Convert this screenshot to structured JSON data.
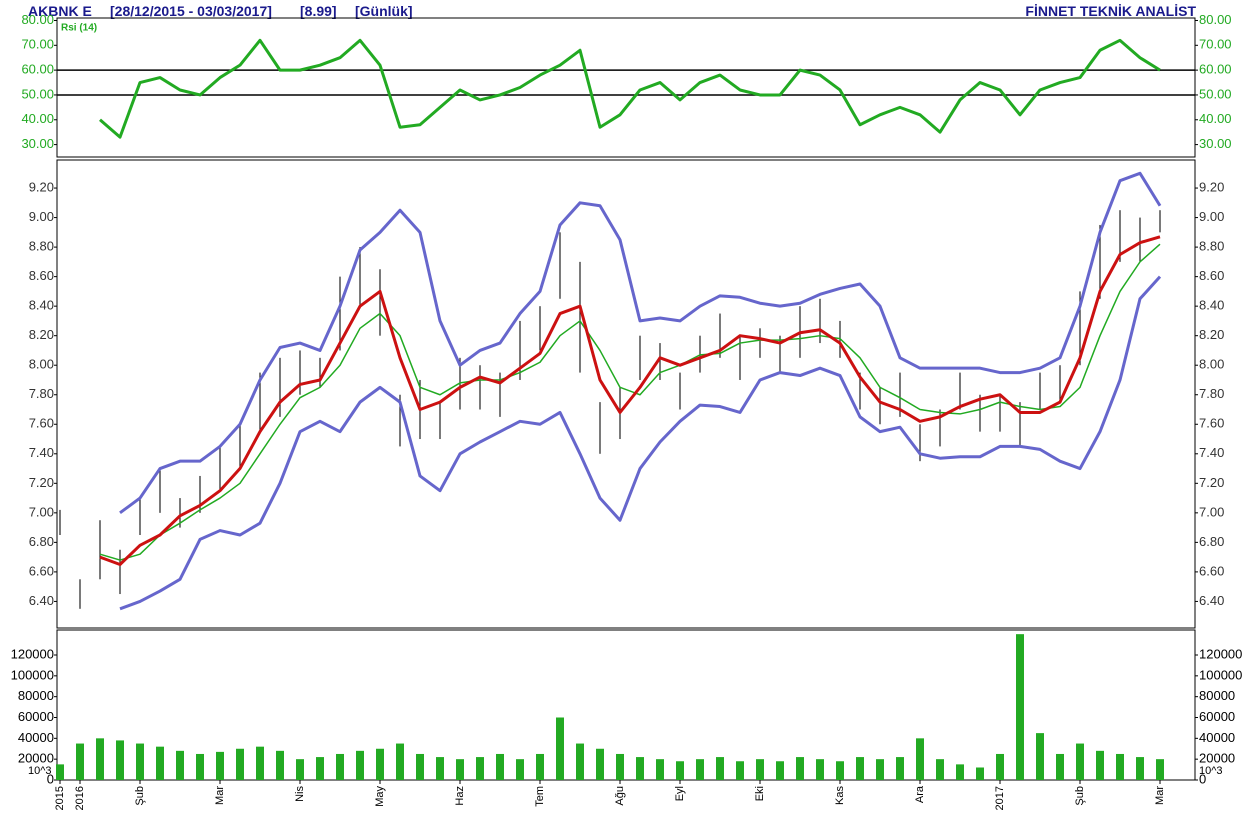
{
  "header": {
    "symbol": "AKBNK E",
    "range": "[28/12/2015 - 03/03/2017]",
    "last": "[8.99]",
    "period": "[Günlük]",
    "brand": "FİNNET TEKNİK ANALİST"
  },
  "chart_data": [
    {
      "type": "line",
      "title": "Rsi (14)",
      "color": "#22aa22",
      "ylim": [
        25,
        81
      ],
      "yticks": [
        {
          "value": 30,
          "label": "30.00"
        },
        {
          "value": 40,
          "label": "40.00"
        },
        {
          "value": 50,
          "label": "50.00"
        },
        {
          "value": 60,
          "label": "60.00"
        },
        {
          "value": 70,
          "label": "70.00"
        },
        {
          "value": 80,
          "label": "80.00"
        }
      ],
      "levels": [
        60,
        50
      ],
      "values": [
        null,
        null,
        40,
        33,
        55,
        57,
        52,
        50,
        57,
        62,
        72,
        60,
        60,
        62,
        65,
        72,
        62,
        37,
        38,
        45,
        52,
        48,
        50,
        53,
        58,
        62,
        68,
        37,
        42,
        52,
        55,
        48,
        55,
        58,
        52,
        50,
        50,
        60,
        58,
        52,
        38,
        42,
        45,
        42,
        35,
        48,
        55,
        52,
        42,
        52,
        55,
        57,
        68,
        72,
        65,
        60,
        null
      ]
    },
    {
      "type": "hilo",
      "ylim": [
        6.22,
        9.39
      ],
      "yticks": [
        {
          "value": 6.4,
          "label": "6.40"
        },
        {
          "value": 6.6,
          "label": "6.60"
        },
        {
          "value": 6.8,
          "label": "6.80"
        },
        {
          "value": 7.0,
          "label": "7.00"
        },
        {
          "value": 7.2,
          "label": "7.20"
        },
        {
          "value": 7.4,
          "label": "7.40"
        },
        {
          "value": 7.6,
          "label": "7.60"
        },
        {
          "value": 7.8,
          "label": "7.80"
        },
        {
          "value": 8.0,
          "label": "8.00"
        },
        {
          "value": 8.2,
          "label": "8.20"
        },
        {
          "value": 8.4,
          "label": "8.40"
        },
        {
          "value": 8.6,
          "label": "8.60"
        },
        {
          "value": 8.8,
          "label": "8.80"
        },
        {
          "value": 9.0,
          "label": "9.00"
        },
        {
          "value": 9.2,
          "label": "9.20"
        }
      ],
      "bar_color": "#222222",
      "high": [
        7.02,
        6.55,
        6.95,
        6.75,
        7.1,
        7.3,
        7.1,
        7.25,
        7.45,
        7.6,
        7.95,
        8.05,
        8.1,
        8.05,
        8.6,
        8.8,
        8.65,
        7.8,
        7.9,
        7.75,
        8.05,
        8.0,
        7.95,
        8.3,
        8.4,
        8.9,
        8.7,
        7.75,
        7.85,
        8.2,
        8.15,
        7.95,
        8.2,
        8.35,
        8.2,
        8.25,
        8.2,
        8.4,
        8.45,
        8.3,
        7.95,
        7.85,
        7.95,
        7.6,
        7.7,
        7.95,
        7.8,
        7.8,
        7.75,
        7.95,
        8.0,
        8.5,
        8.95,
        9.05,
        9.0,
        9.05,
        null
      ],
      "low": [
        6.85,
        6.35,
        6.55,
        6.45,
        6.85,
        7.0,
        6.9,
        7.0,
        7.15,
        7.3,
        7.55,
        7.65,
        7.8,
        7.85,
        8.1,
        8.4,
        8.2,
        7.45,
        7.5,
        7.5,
        7.7,
        7.7,
        7.65,
        7.9,
        8.1,
        8.45,
        7.95,
        7.4,
        7.5,
        7.9,
        7.9,
        7.7,
        7.95,
        8.05,
        7.9,
        8.05,
        7.95,
        8.05,
        8.15,
        8.05,
        7.7,
        7.6,
        7.65,
        7.35,
        7.45,
        7.7,
        7.55,
        7.55,
        7.45,
        7.7,
        7.75,
        8.0,
        8.45,
        8.7,
        8.7,
        8.9,
        null
      ],
      "lines": [
        {
          "color": "#6666cc",
          "width": 3,
          "values": [
            null,
            null,
            null,
            7.0,
            7.1,
            7.3,
            7.35,
            7.35,
            7.45,
            7.6,
            7.9,
            8.12,
            8.15,
            8.1,
            8.4,
            8.78,
            8.9,
            9.05,
            8.9,
            8.3,
            8.0,
            8.1,
            8.15,
            8.35,
            8.5,
            8.95,
            9.1,
            9.08,
            8.85,
            8.3,
            8.32,
            8.3,
            8.4,
            8.47,
            8.46,
            8.42,
            8.4,
            8.42,
            8.48,
            8.52,
            8.55,
            8.4,
            8.05,
            7.98,
            7.98,
            7.98,
            7.98,
            7.95,
            7.95,
            7.98,
            8.05,
            8.4,
            8.9,
            9.25,
            9.3,
            9.08,
            null
          ]
        },
        {
          "color": "#6666cc",
          "width": 3,
          "values": [
            null,
            null,
            null,
            6.35,
            6.4,
            6.47,
            6.55,
            6.82,
            6.88,
            6.85,
            6.93,
            7.2,
            7.55,
            7.62,
            7.55,
            7.75,
            7.85,
            7.75,
            7.25,
            7.15,
            7.4,
            7.48,
            7.55,
            7.62,
            7.6,
            7.68,
            7.4,
            7.1,
            6.95,
            7.3,
            7.48,
            7.62,
            7.73,
            7.72,
            7.68,
            7.9,
            7.95,
            7.93,
            7.98,
            7.93,
            7.65,
            7.55,
            7.58,
            7.4,
            7.37,
            7.38,
            7.38,
            7.45,
            7.45,
            7.43,
            7.35,
            7.3,
            7.55,
            7.9,
            8.45,
            8.6,
            null
          ]
        },
        {
          "color": "#22aa22",
          "width": 1.5,
          "values": [
            null,
            null,
            6.72,
            6.68,
            6.72,
            6.85,
            6.93,
            7.02,
            7.1,
            7.2,
            7.4,
            7.6,
            7.78,
            7.85,
            8.0,
            8.25,
            8.35,
            8.2,
            7.85,
            7.8,
            7.88,
            7.9,
            7.9,
            7.95,
            8.02,
            8.2,
            8.3,
            8.1,
            7.85,
            7.8,
            7.95,
            8.0,
            8.07,
            8.08,
            8.15,
            8.17,
            8.17,
            8.18,
            8.2,
            8.18,
            8.05,
            7.85,
            7.78,
            7.7,
            7.68,
            7.67,
            7.7,
            7.75,
            7.72,
            7.7,
            7.72,
            7.85,
            8.2,
            8.5,
            8.7,
            8.82,
            null
          ]
        },
        {
          "color": "#cc1111",
          "width": 3,
          "values": [
            null,
            null,
            6.7,
            6.65,
            6.78,
            6.85,
            6.98,
            7.05,
            7.15,
            7.3,
            7.55,
            7.75,
            7.87,
            7.9,
            8.15,
            8.4,
            8.5,
            8.05,
            7.7,
            7.75,
            7.85,
            7.92,
            7.88,
            7.98,
            8.08,
            8.35,
            8.4,
            7.9,
            7.68,
            7.85,
            8.05,
            8.0,
            8.05,
            8.1,
            8.2,
            8.18,
            8.15,
            8.22,
            8.24,
            8.15,
            7.92,
            7.75,
            7.7,
            7.62,
            7.65,
            7.72,
            7.77,
            7.8,
            7.68,
            7.68,
            7.75,
            8.05,
            8.5,
            8.75,
            8.83,
            8.87,
            null
          ]
        }
      ]
    },
    {
      "type": "bar",
      "color": "#22aa22",
      "ylim": [
        0,
        144000
      ],
      "unit_label": "10^3",
      "yticks": [
        0,
        20000,
        40000,
        60000,
        80000,
        100000,
        120000
      ],
      "categories": [
        "2015",
        "2016",
        null,
        null,
        "Şub",
        null,
        null,
        null,
        "Mar",
        null,
        null,
        null,
        "Nis",
        null,
        null,
        null,
        "May",
        null,
        null,
        null,
        "Haz",
        null,
        null,
        null,
        "Tem",
        null,
        null,
        null,
        "Ağu",
        null,
        null,
        "Eyl",
        null,
        null,
        null,
        "Eki",
        null,
        null,
        null,
        "Kas",
        null,
        null,
        null,
        "Ara",
        null,
        null,
        null,
        "2017",
        null,
        null,
        null,
        "Şub",
        null,
        null,
        null,
        "Mar",
        null
      ],
      "values": [
        15000,
        35000,
        40000,
        38000,
        35000,
        32000,
        28000,
        25000,
        27000,
        30000,
        32000,
        28000,
        20000,
        22000,
        25000,
        28000,
        30000,
        35000,
        25000,
        22000,
        20000,
        22000,
        25000,
        20000,
        25000,
        60000,
        35000,
        30000,
        25000,
        22000,
        20000,
        18000,
        20000,
        22000,
        18000,
        20000,
        18000,
        22000,
        20000,
        18000,
        22000,
        20000,
        22000,
        40000,
        20000,
        15000,
        12000,
        25000,
        140000,
        45000,
        25000,
        35000,
        28000,
        25000,
        22000,
        20000,
        null
      ]
    }
  ]
}
